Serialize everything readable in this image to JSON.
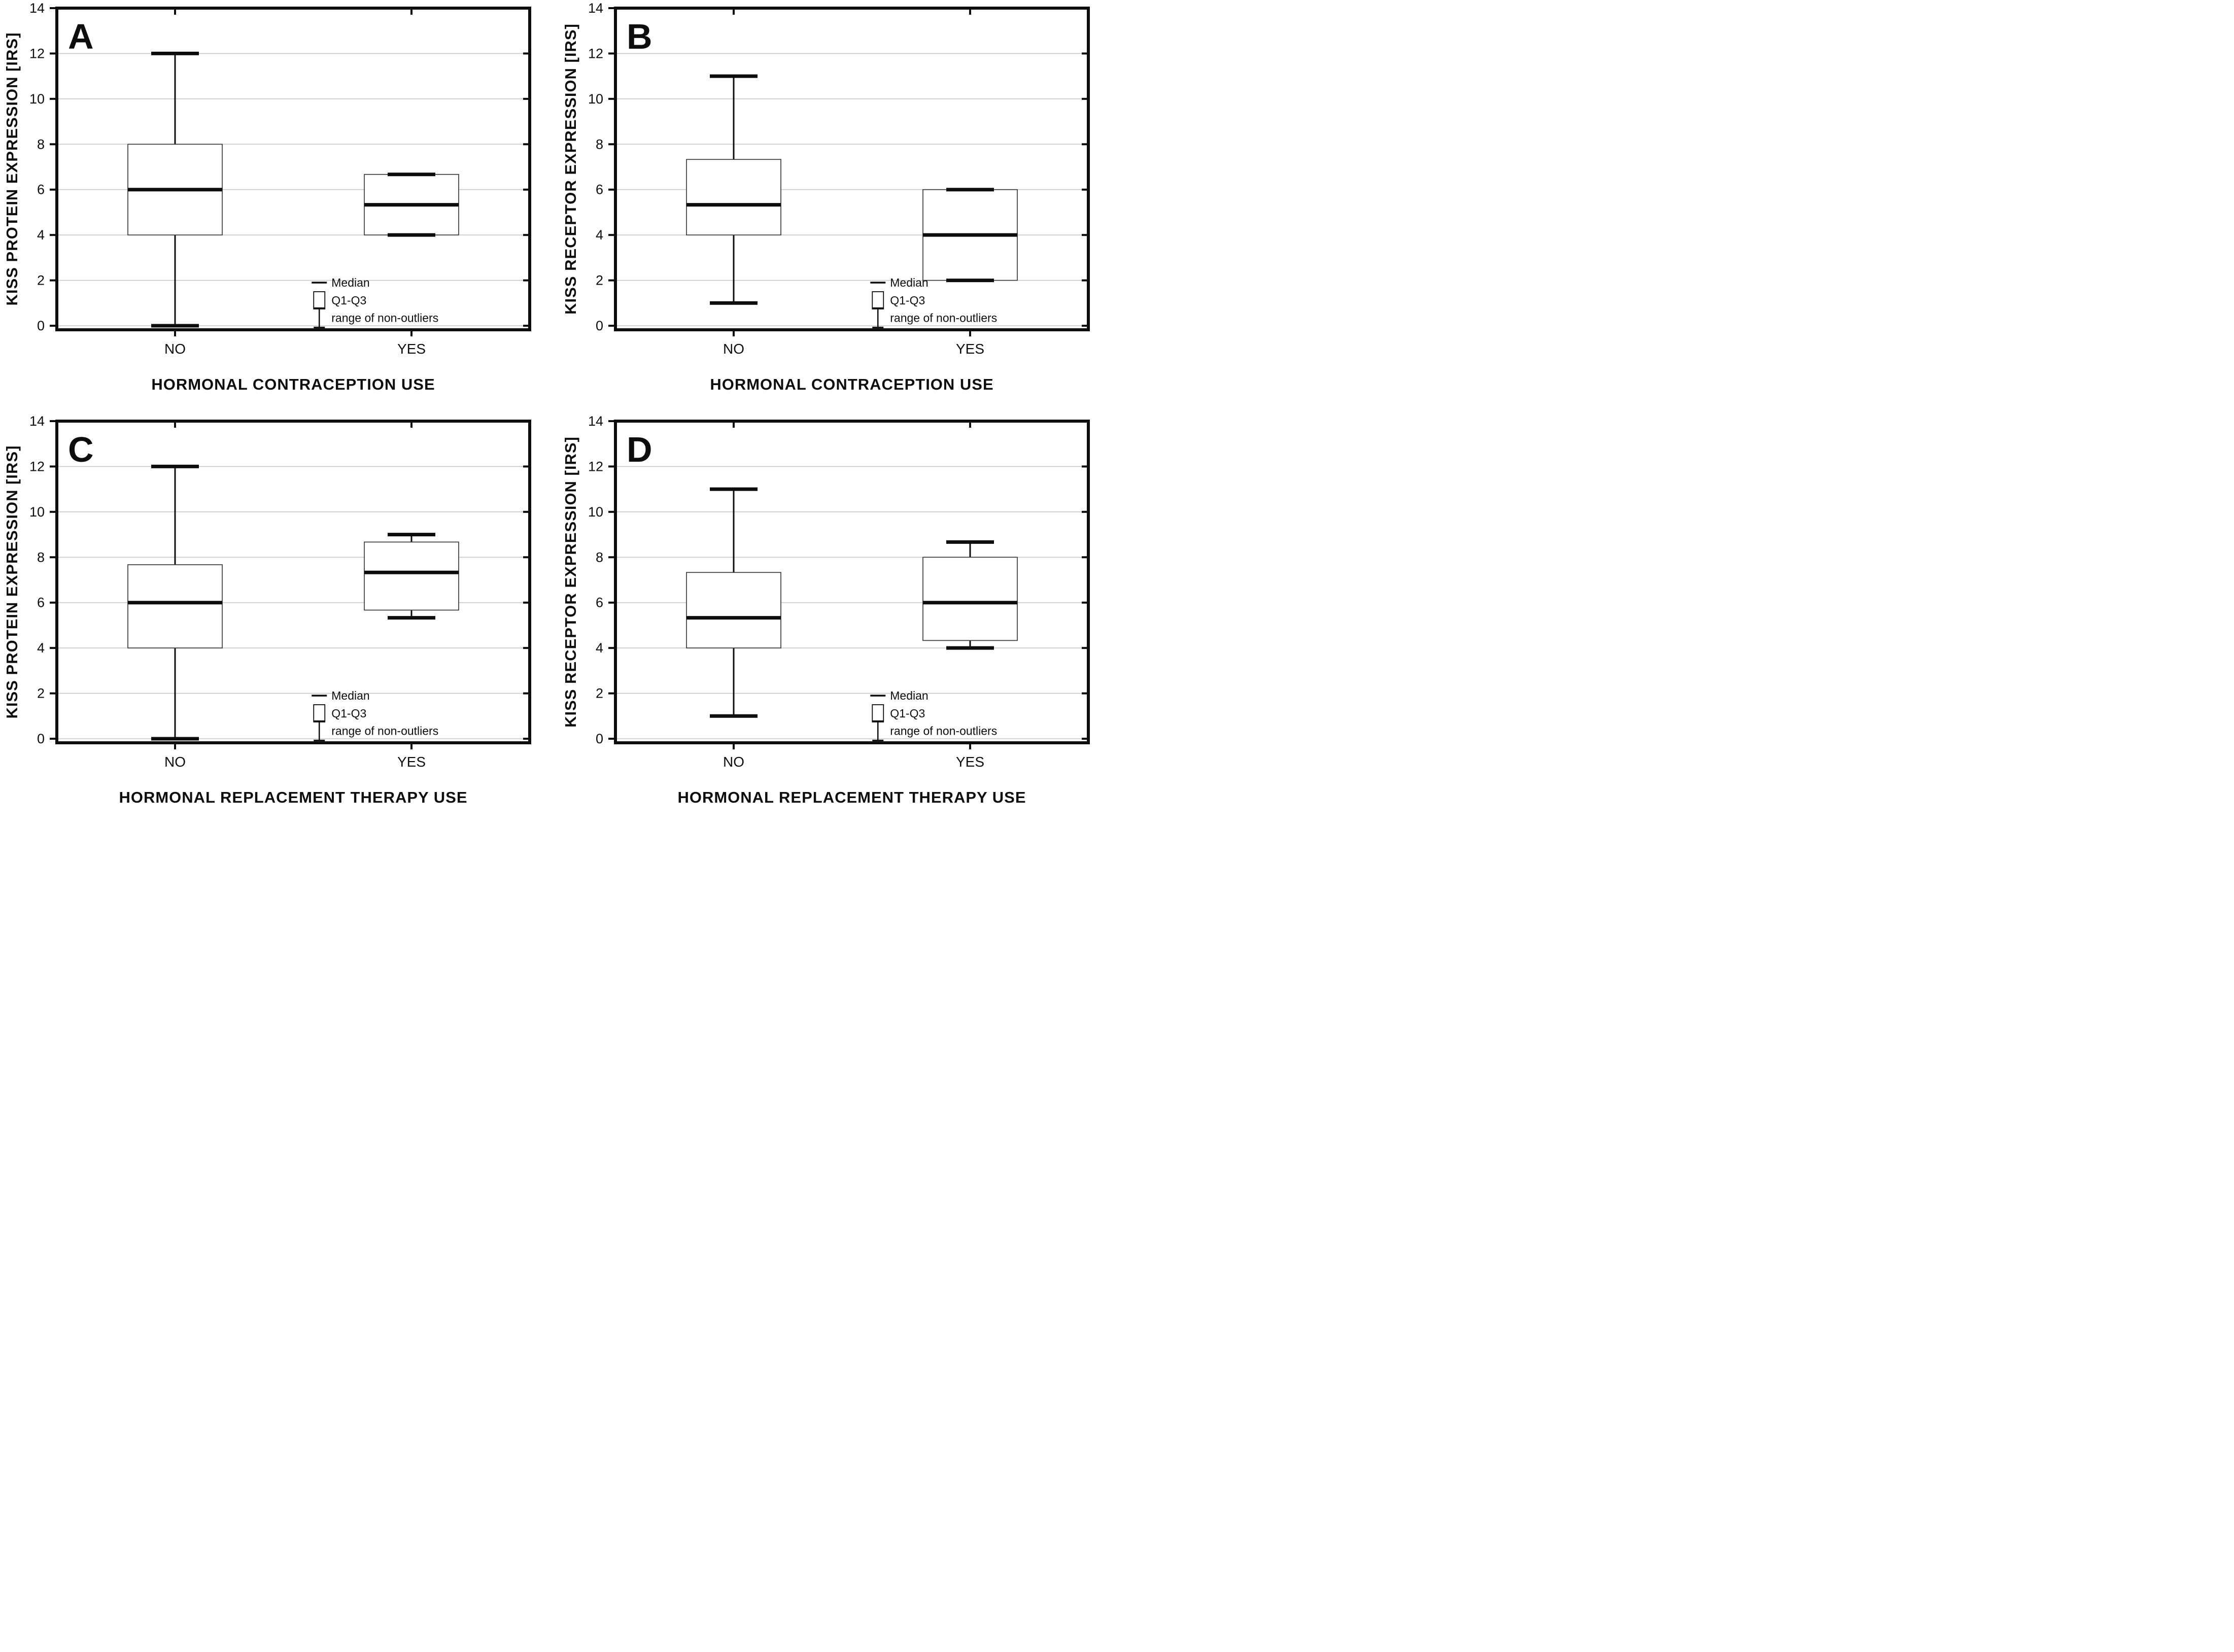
{
  "figure": {
    "background": "#ffffff",
    "ink_color": "#0d0d0d",
    "box_stroke_color": "#3a3a3a",
    "grid_color": "#c8c8c8"
  },
  "legend": {
    "items": [
      {
        "symbol": "median-line-icon",
        "label": "Median"
      },
      {
        "symbol": "q1-q3-box-icon",
        "label": "Q1-Q3"
      },
      {
        "symbol": "whisker-range-icon",
        "label": "range of non-outliers"
      }
    ]
  },
  "chart_data": [
    {
      "type": "box",
      "panel_label": "A",
      "ylabel": "KISS PROTEIN EXPRESSION [IRS]",
      "xlabel": "HORMONAL CONTRACEPTION USE",
      "categories": [
        "NO",
        "YES"
      ],
      "ylim": [
        0,
        14
      ],
      "yticks": [
        0,
        2,
        4,
        6,
        8,
        10,
        12,
        14
      ],
      "grid": true,
      "legend_position": "lower-right-inside",
      "series": [
        {
          "category": "NO",
          "whisker_low": 0,
          "q1": 4,
          "median": 6,
          "q3": 8,
          "whisker_high": 12
        },
        {
          "category": "YES",
          "whisker_low": 4,
          "q1": 4,
          "median": 5.33,
          "q3": 6.67,
          "whisker_high": 6.67
        }
      ]
    },
    {
      "type": "box",
      "panel_label": "B",
      "ylabel": "KISS RECEPTOR EXPRESSION [IRS]",
      "xlabel": "HORMONAL CONTRACEPTION USE",
      "categories": [
        "NO",
        "YES"
      ],
      "ylim": [
        0,
        14
      ],
      "yticks": [
        0,
        2,
        4,
        6,
        8,
        10,
        12,
        14
      ],
      "grid": true,
      "legend_position": "lower-right-inside",
      "series": [
        {
          "category": "NO",
          "whisker_low": 1,
          "q1": 4,
          "median": 5.33,
          "q3": 7.33,
          "whisker_high": 11
        },
        {
          "category": "YES",
          "whisker_low": 2,
          "q1": 2,
          "median": 4,
          "q3": 6,
          "whisker_high": 6
        }
      ]
    },
    {
      "type": "box",
      "panel_label": "C",
      "ylabel": "KISS PROTEIN EXPRESSION [IRS]",
      "xlabel": "HORMONAL REPLACEMENT THERAPY USE",
      "categories": [
        "NO",
        "YES"
      ],
      "ylim": [
        0,
        14
      ],
      "yticks": [
        0,
        2,
        4,
        6,
        8,
        10,
        12,
        14
      ],
      "grid": true,
      "legend_position": "lower-right-inside",
      "series": [
        {
          "category": "NO",
          "whisker_low": 0,
          "q1": 4,
          "median": 6,
          "q3": 7.67,
          "whisker_high": 12
        },
        {
          "category": "YES",
          "whisker_low": 5.33,
          "q1": 5.67,
          "median": 7.33,
          "q3": 8.67,
          "whisker_high": 9
        }
      ]
    },
    {
      "type": "box",
      "panel_label": "D",
      "ylabel": "KISS RECEPTOR EXPRESSION [IRS]",
      "xlabel": "HORMONAL REPLACEMENT THERAPY USE",
      "categories": [
        "NO",
        "YES"
      ],
      "ylim": [
        0,
        14
      ],
      "yticks": [
        0,
        2,
        4,
        6,
        8,
        10,
        12,
        14
      ],
      "grid": true,
      "legend_position": "lower-right-inside",
      "series": [
        {
          "category": "NO",
          "whisker_low": 1,
          "q1": 4,
          "median": 5.33,
          "q3": 7.33,
          "whisker_high": 11
        },
        {
          "category": "YES",
          "whisker_low": 4,
          "q1": 4.33,
          "median": 6,
          "q3": 8,
          "whisker_high": 8.67
        }
      ]
    }
  ]
}
